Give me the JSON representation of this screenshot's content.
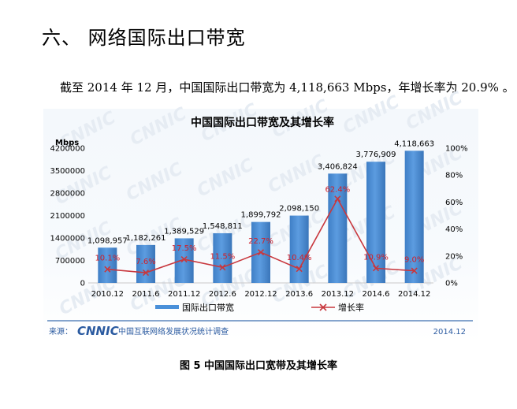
{
  "heading": "六、 网络国际出口带宽",
  "intro_text": "截至 2014 年 12 月，中国国际出口带宽为 4,118,663 Mbps，年增长率为 20.9% 。",
  "figure_caption": "图 5    中国国际出口宽带及其增长率",
  "chart_data": {
    "type": "bar",
    "title": "中国国际出口带宽及其增长率",
    "ylabel_left": "Mbps",
    "categories": [
      "2010.12",
      "2011.6",
      "2011.12",
      "2012.6",
      "2012.12",
      "2013.6",
      "2013.12",
      "2014.6",
      "2014.12"
    ],
    "bar_labels": [
      "1,098,957",
      "1,182,261",
      "1,389,529",
      "1,548,811",
      "1,899,792",
      "2,098,150",
      "3,406,824",
      "3,776,909",
      "4,118,663"
    ],
    "series": [
      {
        "name": "国际出口带宽",
        "type": "bar",
        "axis": "left",
        "color": "#4a90d9",
        "values": [
          1098957,
          1182261,
          1389529,
          1548811,
          1899792,
          2098150,
          3406824,
          3776909,
          4118663
        ]
      },
      {
        "name": "增长率",
        "type": "line",
        "axis": "right",
        "color": "#c8373d",
        "values": [
          10.1,
          7.6,
          17.5,
          11.5,
          22.7,
          10.4,
          62.4,
          10.9,
          9.0
        ],
        "labels": [
          "10.1%",
          "7.6%",
          "17.5%",
          "11.5%",
          "22.7%",
          "10.4%",
          "62.4%",
          "10.9%",
          "9.0%"
        ]
      }
    ],
    "left_axis": {
      "ylim": [
        0,
        4200000
      ],
      "ticks": [
        0,
        700000,
        1400000,
        2100000,
        2800000,
        3500000,
        4200000
      ],
      "tick_labels": [
        "0",
        "700000",
        "1400000",
        "2100000",
        "2800000",
        "3500000",
        "4200000"
      ]
    },
    "right_axis": {
      "ylim": [
        0,
        100
      ],
      "ticks": [
        0,
        20,
        40,
        60,
        80,
        100
      ],
      "tick_labels": [
        "0%",
        "20%",
        "40%",
        "60%",
        "80%",
        "100%"
      ]
    },
    "legend": {
      "position": "bottom",
      "items": [
        "国际出口带宽",
        "增长率"
      ]
    },
    "watermark": "CNNIC",
    "source_label": "来源：",
    "source_org": "中国互联网络发展状况统计调查",
    "date_label": "2014.12"
  }
}
